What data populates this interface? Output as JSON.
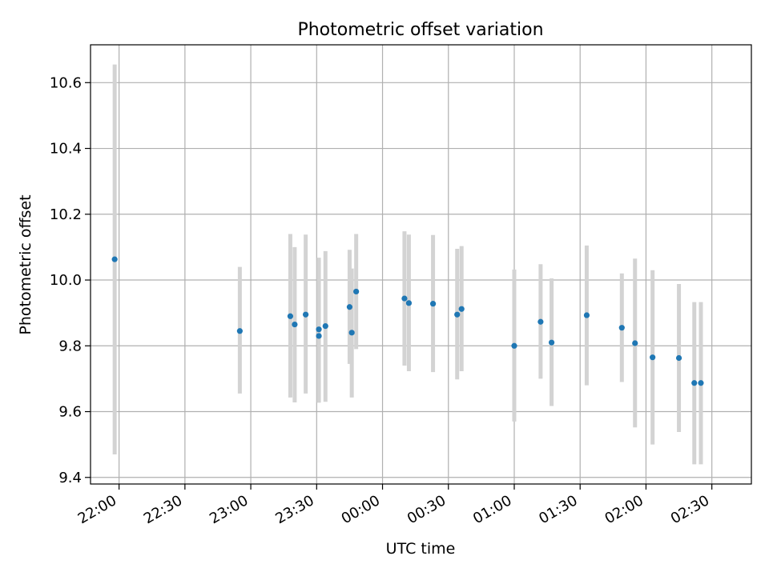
{
  "chart_data": {
    "type": "scatter",
    "title": "Photometric offset variation",
    "xlabel": "UTC time",
    "ylabel": "Photometric offset",
    "grid": true,
    "x_axis_kind": "time",
    "xlim": [
      "21:47",
      "02:48"
    ],
    "ylim": [
      9.38,
      10.715
    ],
    "x_ticks": [
      "22:00",
      "22:30",
      "23:00",
      "23:30",
      "00:00",
      "00:30",
      "01:00",
      "01:30",
      "02:00",
      "02:30"
    ],
    "y_ticks": [
      9.4,
      9.6,
      9.8,
      10.0,
      10.2,
      10.4,
      10.6
    ],
    "y_tick_labels": [
      "9.4",
      "9.6",
      "9.8",
      "10.0",
      "10.2",
      "10.4",
      "10.6"
    ],
    "marker_color": "#1f77b4",
    "errorbar_color": "#d3d3d3",
    "points": [
      {
        "x": "21:58",
        "y": 10.063,
        "lo": 9.47,
        "hi": 10.655
      },
      {
        "x": "22:55",
        "y": 9.845,
        "lo": 9.655,
        "hi": 10.04
      },
      {
        "x": "23:18",
        "y": 9.89,
        "lo": 9.643,
        "hi": 10.14
      },
      {
        "x": "23:20",
        "y": 9.865,
        "lo": 9.628,
        "hi": 10.1
      },
      {
        "x": "23:25",
        "y": 9.895,
        "lo": 9.655,
        "hi": 10.138
      },
      {
        "x": "23:31",
        "y": 9.85,
        "lo": 9.627,
        "hi": 10.068
      },
      {
        "x": "23:31",
        "y": 9.83,
        "lo": 9.63,
        "hi": 10.06
      },
      {
        "x": "23:34",
        "y": 9.86,
        "lo": 9.63,
        "hi": 10.088
      },
      {
        "x": "23:45",
        "y": 9.918,
        "lo": 9.745,
        "hi": 10.092
      },
      {
        "x": "23:46",
        "y": 9.84,
        "lo": 9.643,
        "hi": 10.035
      },
      {
        "x": "23:48",
        "y": 9.965,
        "lo": 9.79,
        "hi": 10.14
      },
      {
        "x": "00:10",
        "y": 9.944,
        "lo": 9.74,
        "hi": 10.148
      },
      {
        "x": "00:12",
        "y": 9.93,
        "lo": 9.723,
        "hi": 10.138
      },
      {
        "x": "00:23",
        "y": 9.928,
        "lo": 9.72,
        "hi": 10.137
      },
      {
        "x": "00:34",
        "y": 9.895,
        "lo": 9.698,
        "hi": 10.095
      },
      {
        "x": "00:36",
        "y": 9.912,
        "lo": 9.723,
        "hi": 10.103
      },
      {
        "x": "01:00",
        "y": 9.8,
        "lo": 9.57,
        "hi": 10.032
      },
      {
        "x": "01:12",
        "y": 9.873,
        "lo": 9.7,
        "hi": 10.048
      },
      {
        "x": "01:17",
        "y": 9.81,
        "lo": 9.617,
        "hi": 10.005
      },
      {
        "x": "01:33",
        "y": 9.893,
        "lo": 9.68,
        "hi": 10.105
      },
      {
        "x": "01:49",
        "y": 9.855,
        "lo": 9.69,
        "hi": 10.02
      },
      {
        "x": "01:55",
        "y": 9.808,
        "lo": 9.552,
        "hi": 10.065
      },
      {
        "x": "02:03",
        "y": 9.765,
        "lo": 9.5,
        "hi": 10.03
      },
      {
        "x": "02:15",
        "y": 9.763,
        "lo": 9.538,
        "hi": 9.988
      },
      {
        "x": "02:22",
        "y": 9.687,
        "lo": 9.44,
        "hi": 9.933
      },
      {
        "x": "02:25",
        "y": 9.687,
        "lo": 9.44,
        "hi": 9.933
      }
    ]
  }
}
